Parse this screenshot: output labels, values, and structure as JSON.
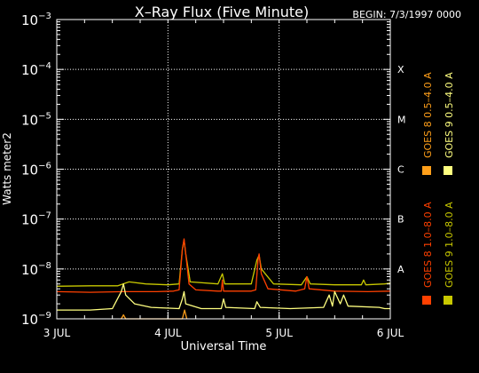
{
  "chart_data": {
    "type": "line",
    "title": "X–Ray Flux (Five Minute)",
    "begin_label": "BEGIN: 7/3/1997 0000",
    "ylabel": "Watts meter2",
    "xlabel": "Universal Time",
    "x_ticks": [
      "3 JUL",
      "4 JUL",
      "5 JUL",
      "6 JUL"
    ],
    "x_range_days": [
      0,
      3
    ],
    "y_scale": "log",
    "ylim": [
      1e-09,
      0.001
    ],
    "y_ticks": [
      {
        "mant": "10",
        "exp": "−9",
        "value": 1e-09
      },
      {
        "mant": "10",
        "exp": "−8",
        "value": 1e-08
      },
      {
        "mant": "10",
        "exp": "−7",
        "value": 1e-07
      },
      {
        "mant": "10",
        "exp": "−6",
        "value": 1e-06
      },
      {
        "mant": "10",
        "exp": "−5",
        "value": 1e-05
      },
      {
        "mant": "10",
        "exp": "−4",
        "value": 0.0001
      },
      {
        "mant": "10",
        "exp": "−3",
        "value": 0.001
      }
    ],
    "flare_classes": [
      {
        "label": "A",
        "value": 1e-08
      },
      {
        "label": "B",
        "value": 1e-07
      },
      {
        "label": "C",
        "value": 1e-06
      },
      {
        "label": "M",
        "value": 1e-05
      },
      {
        "label": "X",
        "value": 0.0001
      }
    ],
    "grid": "dotted",
    "legend_position": "right",
    "series": [
      {
        "name": "GOES 8 1.0–8.0 A",
        "color": "#ff4000",
        "points": [
          [
            0,
            3.5e-09
          ],
          [
            0.3,
            3.4e-09
          ],
          [
            0.6,
            3.5e-09
          ],
          [
            0.9,
            3.5e-09
          ],
          [
            1.05,
            3.6e-09
          ],
          [
            1.1,
            3.8e-09
          ],
          [
            1.13,
            2.5e-08
          ],
          [
            1.145,
            4e-08
          ],
          [
            1.16,
            2e-08
          ],
          [
            1.19,
            5e-09
          ],
          [
            1.25,
            3.8e-09
          ],
          [
            1.45,
            3.6e-09
          ],
          [
            1.48,
            3.6e-09
          ],
          [
            1.49,
            6e-09
          ],
          [
            1.5,
            3.6e-09
          ],
          [
            1.75,
            3.6e-09
          ],
          [
            1.79,
            3.8e-09
          ],
          [
            1.81,
            1.5e-08
          ],
          [
            1.82,
            2e-08
          ],
          [
            1.84,
            8e-09
          ],
          [
            1.9,
            4e-09
          ],
          [
            2.15,
            3.6e-09
          ],
          [
            2.23,
            4e-09
          ],
          [
            2.25,
            7e-09
          ],
          [
            2.27,
            4e-09
          ],
          [
            2.5,
            3.6e-09
          ],
          [
            2.8,
            3.5e-09
          ],
          [
            3.0,
            3.6e-09
          ]
        ]
      },
      {
        "name": "GOES 8 0.5–4.0 A",
        "color": "#ff9f1a",
        "points": [
          [
            0.58,
            1e-09
          ],
          [
            0.6,
            1.2e-09
          ],
          [
            0.62,
            1e-09
          ],
          [
            1.13,
            1e-09
          ],
          [
            1.15,
            1.5e-09
          ],
          [
            1.17,
            1e-09
          ]
        ]
      },
      {
        "name": "GOES 9 1.0–8.0 A",
        "color": "#c8c800",
        "points": [
          [
            0,
            4.5e-09
          ],
          [
            0.3,
            4.6e-09
          ],
          [
            0.55,
            4.6e-09
          ],
          [
            0.65,
            5.5e-09
          ],
          [
            0.8,
            5e-09
          ],
          [
            1.0,
            4.8e-09
          ],
          [
            1.1,
            5e-09
          ],
          [
            1.13,
            2.5e-08
          ],
          [
            1.145,
            3.8e-08
          ],
          [
            1.16,
            2e-08
          ],
          [
            1.2,
            5.5e-09
          ],
          [
            1.45,
            5e-09
          ],
          [
            1.49,
            8e-09
          ],
          [
            1.51,
            5e-09
          ],
          [
            1.75,
            5e-09
          ],
          [
            1.8,
            1.5e-08
          ],
          [
            1.82,
            1.9e-08
          ],
          [
            1.84,
            1e-08
          ],
          [
            1.95,
            5e-09
          ],
          [
            2.2,
            4.8e-09
          ],
          [
            2.25,
            7e-09
          ],
          [
            2.28,
            5e-09
          ],
          [
            2.5,
            4.8e-09
          ],
          [
            2.74,
            4.8e-09
          ],
          [
            2.76,
            6e-09
          ],
          [
            2.78,
            4.8e-09
          ],
          [
            2.95,
            5e-09
          ],
          [
            3.0,
            5.2e-09
          ]
        ]
      },
      {
        "name": "GOES 9 0.5–4.0 A",
        "color": "#ffff80",
        "points": [
          [
            0,
            1.5e-09
          ],
          [
            0.3,
            1.5e-09
          ],
          [
            0.5,
            1.6e-09
          ],
          [
            0.58,
            3.5e-09
          ],
          [
            0.6,
            5e-09
          ],
          [
            0.62,
            3e-09
          ],
          [
            0.7,
            2e-09
          ],
          [
            0.85,
            1.7e-09
          ],
          [
            1.1,
            1.6e-09
          ],
          [
            1.13,
            2.5e-09
          ],
          [
            1.145,
            3.5e-09
          ],
          [
            1.16,
            2e-09
          ],
          [
            1.3,
            1.6e-09
          ],
          [
            1.48,
            1.6e-09
          ],
          [
            1.5,
            2.5e-09
          ],
          [
            1.52,
            1.7e-09
          ],
          [
            1.78,
            1.6e-09
          ],
          [
            1.8,
            2.2e-09
          ],
          [
            1.83,
            1.7e-09
          ],
          [
            2.1,
            1.6e-09
          ],
          [
            2.4,
            1.7e-09
          ],
          [
            2.45,
            3e-09
          ],
          [
            2.48,
            1.8e-09
          ],
          [
            2.5,
            3.5e-09
          ],
          [
            2.55,
            2e-09
          ],
          [
            2.58,
            3e-09
          ],
          [
            2.62,
            1.8e-09
          ],
          [
            2.9,
            1.7e-09
          ],
          [
            2.95,
            1.6e-09
          ],
          [
            3.0,
            1.6e-09
          ]
        ]
      }
    ]
  }
}
